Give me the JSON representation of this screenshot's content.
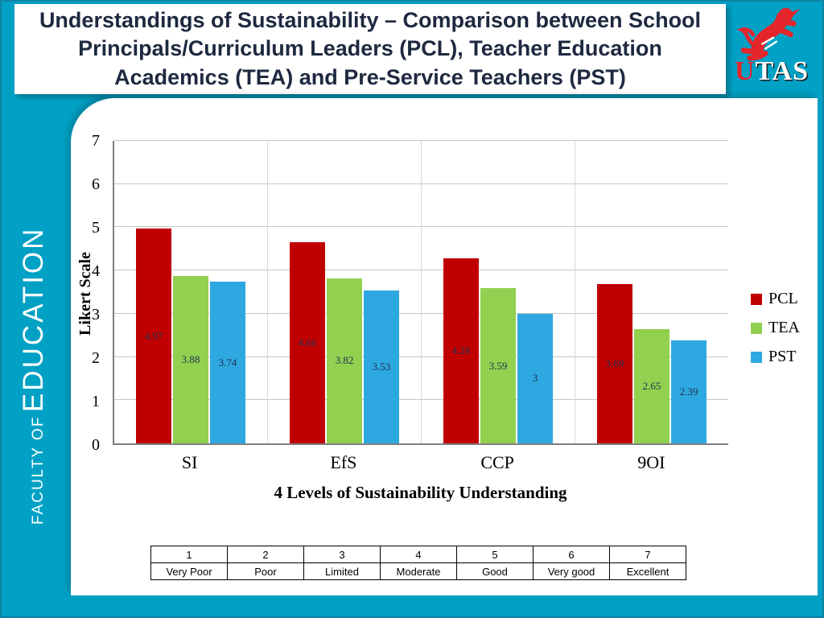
{
  "title": "Understandings of Sustainability – Comparison between School Principals/Curriculum Leaders (PCL), Teacher Education Academics (TEA) and Pre-Service Teachers (PST)",
  "logo": {
    "u": "U",
    "tas": "TAS"
  },
  "sidebar": {
    "faculty": "FACULTY OF",
    "education": "EDUCATION"
  },
  "colors": {
    "teal": "#00A1C5",
    "pcl": "#C00000",
    "tea": "#92D050",
    "pst": "#2EA8E0"
  },
  "chart_data": {
    "type": "bar",
    "categories": [
      "SI",
      "EfS",
      "CCP",
      "9OI"
    ],
    "series": [
      {
        "name": "PCL",
        "color": "#C00000",
        "values": [
          4.97,
          4.66,
          4.28,
          3.69
        ],
        "labels": [
          "4.97",
          "4.66",
          "4.28",
          "3.69"
        ]
      },
      {
        "name": "TEA",
        "color": "#92D050",
        "values": [
          3.88,
          3.82,
          3.59,
          2.65
        ],
        "labels": [
          "3.88",
          "3.82",
          "3.59",
          "2.65"
        ]
      },
      {
        "name": "PST",
        "color": "#2EA8E0",
        "values": [
          3.74,
          3.53,
          3,
          2.39
        ],
        "labels": [
          "3.74",
          "3.53",
          "3",
          "2.39"
        ]
      }
    ],
    "title": "",
    "xlabel": "4 Levels of Sustainability Understanding",
    "ylabel": "Likert Scale",
    "ylim": [
      0,
      7
    ],
    "yticks": [
      0,
      1,
      2,
      3,
      4,
      5,
      6,
      7
    ],
    "grid": true,
    "legend_position": "right"
  },
  "scale_table": {
    "numbers": [
      "1",
      "2",
      "3",
      "4",
      "5",
      "6",
      "7"
    ],
    "labels": [
      "Very Poor",
      "Poor",
      "Limited",
      "Moderate",
      "Good",
      "Very good",
      "Excellent"
    ]
  }
}
